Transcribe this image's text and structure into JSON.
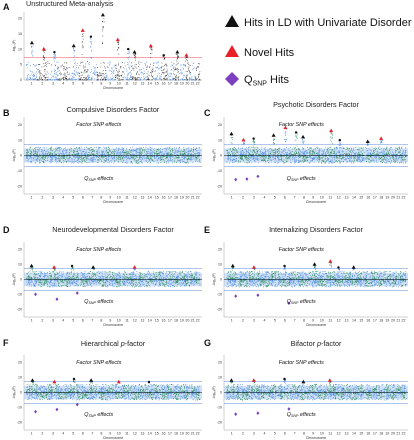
{
  "legend": {
    "items": [
      {
        "marker": "triangle",
        "color": "#111111",
        "text": "Hits in LD with Univariate Disorder Hits"
      },
      {
        "marker": "triangle",
        "color": "#e8202a",
        "text": "Novel Hits"
      },
      {
        "marker": "diamond",
        "color": "#7b3fbf",
        "text_main": "Q",
        "text_sub": "SNP",
        "text_tail": " Hits"
      }
    ]
  },
  "colors": {
    "chrom_odd": "#2c8a63",
    "chrom_even": "#4f8ee0",
    "band": "#a9c8f2",
    "sig_line": "#3a6fd0",
    "line_black": "#000000",
    "panelA_even": "#4a86de",
    "panelA_odd": "#2d2d2d"
  },
  "chart_data": [
    {
      "id": "A",
      "letter": "A",
      "title": "Unstructured Meta-analysis",
      "type": "scatter",
      "xlabel": "Chromosome",
      "ylabel": "-log₁₀(P)",
      "yticks": [
        "20",
        "15",
        "10",
        "5",
        "0"
      ],
      "ylim": [
        0,
        22
      ],
      "categories": [
        "1",
        "2",
        "3",
        "4",
        "5",
        "6",
        "7",
        "8",
        "9",
        "10",
        "11",
        "12",
        "13",
        "14",
        "15",
        "16",
        "17",
        "18",
        "19",
        "20",
        "21",
        "22"
      ],
      "peaks": [
        {
          "chrom": "1",
          "y": 12
        },
        {
          "chrom": "2",
          "y": 10
        },
        {
          "chrom": "3",
          "y": 9
        },
        {
          "chrom": "5",
          "y": 11
        },
        {
          "chrom": "6",
          "y": 16
        },
        {
          "chrom": "7",
          "y": 14
        },
        {
          "chrom": "8",
          "y": 21
        },
        {
          "chrom": "10",
          "y": 13
        },
        {
          "chrom": "11",
          "y": 10
        },
        {
          "chrom": "12",
          "y": 9
        },
        {
          "chrom": "14",
          "y": 11
        },
        {
          "chrom": "16",
          "y": 8
        },
        {
          "chrom": "18",
          "y": 9
        },
        {
          "chrom": "20",
          "y": 8
        }
      ],
      "annotations": []
    },
    {
      "id": "B",
      "letter": "B",
      "title": "Compulsive Disorders Factor",
      "type": "scatter",
      "xlabel": "Chromosome",
      "ylabel": "-log₁₀(P)",
      "yticks": [
        "20",
        "10",
        "0",
        "-10",
        "-20"
      ],
      "ylim": [
        -25,
        25
      ],
      "categories": [
        "1",
        "2",
        "3",
        "4",
        "5",
        "6",
        "7",
        "8",
        "9",
        "10",
        "11",
        "12",
        "13",
        "14",
        "15",
        "16",
        "17",
        "18",
        "19",
        "20",
        "21",
        "22"
      ],
      "peaks": [],
      "annotations": [
        {
          "text": "Factor SNP effects",
          "pos": "upper"
        },
        {
          "text": "Q",
          "sub": "SNP",
          "tail": " effects",
          "pos": "lower"
        }
      ]
    },
    {
      "id": "C",
      "letter": "C",
      "title": "Psychotic Disorders Factor",
      "type": "scatter",
      "xlabel": "Chromosome",
      "ylabel": "-log₁₀(P)",
      "yticks": [
        "20",
        "10",
        "0",
        "-10",
        "-20"
      ],
      "ylim": [
        -25,
        25
      ],
      "categories": [
        "1",
        "2",
        "3",
        "4",
        "5",
        "6",
        "7",
        "8",
        "9",
        "10",
        "11",
        "12",
        "13",
        "14",
        "15",
        "16",
        "17",
        "18",
        "19",
        "20",
        "21",
        "22"
      ],
      "peaks": [
        {
          "chrom": "1",
          "y": 14
        },
        {
          "chrom": "2",
          "y": 10
        },
        {
          "chrom": "3",
          "y": 11
        },
        {
          "chrom": "5",
          "y": 13
        },
        {
          "chrom": "6",
          "y": 18
        },
        {
          "chrom": "7",
          "y": 15
        },
        {
          "chrom": "8",
          "y": 12
        },
        {
          "chrom": "11",
          "y": 16
        },
        {
          "chrom": "12",
          "y": 10
        },
        {
          "chrom": "16",
          "y": 9
        },
        {
          "chrom": "18",
          "y": 11
        }
      ],
      "annotations": [
        {
          "text": "Factor SNP effects",
          "pos": "upper"
        },
        {
          "text": "Q",
          "sub": "SNP",
          "tail": " effects",
          "pos": "lower"
        }
      ]
    },
    {
      "id": "D",
      "letter": "D",
      "title": "Neurodevelopmental Disorders Factor",
      "type": "scatter",
      "xlabel": "Chromosome",
      "ylabel": "-log₁₀(P)",
      "yticks": [
        "20",
        "10",
        "0",
        "-10",
        "-20"
      ],
      "ylim": [
        -25,
        25
      ],
      "categories": [
        "1",
        "2",
        "3",
        "4",
        "5",
        "6",
        "7",
        "8",
        "9",
        "10",
        "11",
        "12",
        "13",
        "14",
        "15",
        "16",
        "17",
        "18",
        "19",
        "20",
        "21",
        "22"
      ],
      "peaks": [
        {
          "chrom": "1",
          "y": 9
        },
        {
          "chrom": "3",
          "y": 8
        },
        {
          "chrom": "5",
          "y": 9
        },
        {
          "chrom": "7",
          "y": 8
        },
        {
          "chrom": "12",
          "y": 8
        }
      ],
      "annotations": [
        {
          "text": "Factor SNP effects",
          "pos": "upper"
        },
        {
          "text": "Q",
          "sub": "SNP",
          "tail": " effects",
          "pos": "lower"
        }
      ]
    },
    {
      "id": "E",
      "letter": "E",
      "title": "Internalizing Disorders Factor",
      "type": "scatter",
      "xlabel": "Chromosome",
      "ylabel": "-log₁₀(P)",
      "yticks": [
        "20",
        "10",
        "0",
        "-10",
        "-20"
      ],
      "ylim": [
        -25,
        25
      ],
      "categories": [
        "1",
        "2",
        "3",
        "4",
        "5",
        "6",
        "7",
        "8",
        "9",
        "10",
        "11",
        "12",
        "13",
        "14",
        "15",
        "16",
        "17",
        "18",
        "19",
        "20",
        "21",
        "22"
      ],
      "peaks": [
        {
          "chrom": "1",
          "y": 9
        },
        {
          "chrom": "3",
          "y": 8
        },
        {
          "chrom": "6",
          "y": 9
        },
        {
          "chrom": "9",
          "y": 10
        },
        {
          "chrom": "11",
          "y": 12
        },
        {
          "chrom": "12",
          "y": 8
        },
        {
          "chrom": "14",
          "y": 8
        }
      ],
      "annotations": [
        {
          "text": "Factor SNP effects",
          "pos": "upper"
        },
        {
          "text": "Q",
          "sub": "SNP",
          "tail": " effects",
          "pos": "lower"
        }
      ]
    },
    {
      "id": "F",
      "letter": "F",
      "title": "Hierarchical p-factor",
      "title_main": "Hierarchical ",
      "title_italic": "p",
      "title_tail": "-factor",
      "type": "scatter",
      "xlabel": "Chromosome",
      "ylabel": "-log₁₀(P)",
      "yticks": [
        "20",
        "10",
        "0",
        "-10",
        "-20"
      ],
      "ylim": [
        -25,
        25
      ],
      "categories": [
        "1",
        "2",
        "3",
        "4",
        "5",
        "6",
        "7",
        "8",
        "9",
        "10",
        "11",
        "12",
        "13",
        "14",
        "15",
        "16",
        "17",
        "18",
        "19",
        "20",
        "21",
        "22"
      ],
      "peaks": [
        {
          "chrom": "1",
          "y": 8
        },
        {
          "chrom": "3",
          "y": 7
        },
        {
          "chrom": "5",
          "y": 9
        },
        {
          "chrom": "7",
          "y": 8
        },
        {
          "chrom": "10",
          "y": 7
        },
        {
          "chrom": "14",
          "y": 7
        }
      ],
      "annotations": [
        {
          "text": "Factor SNP effects",
          "pos": "upper"
        },
        {
          "text": "Q",
          "sub": "SNP",
          "tail": " effects",
          "pos": "lower"
        }
      ]
    },
    {
      "id": "G",
      "letter": "G",
      "title": "Bifactor p-factor",
      "title_main": "Bifactor ",
      "title_italic": "p",
      "title_tail": "-factor",
      "type": "scatter",
      "xlabel": "Chromosome",
      "ylabel": "-log₁₀(P)",
      "yticks": [
        "20",
        "10",
        "0",
        "-10",
        "-20"
      ],
      "ylim": [
        -25,
        25
      ],
      "categories": [
        "1",
        "2",
        "3",
        "4",
        "5",
        "6",
        "7",
        "8",
        "9",
        "10",
        "11",
        "12",
        "13",
        "14",
        "15",
        "16",
        "17",
        "18",
        "19",
        "20",
        "21",
        "22"
      ],
      "peaks": [
        {
          "chrom": "1",
          "y": 8
        },
        {
          "chrom": "3",
          "y": 8
        },
        {
          "chrom": "6",
          "y": 9
        },
        {
          "chrom": "8",
          "y": 7
        },
        {
          "chrom": "11",
          "y": 8
        }
      ],
      "annotations": [
        {
          "text": "Factor SNP effects",
          "pos": "upper"
        },
        {
          "text": "Q",
          "sub": "SNP",
          "tail": " effects",
          "pos": "lower"
        }
      ]
    }
  ]
}
